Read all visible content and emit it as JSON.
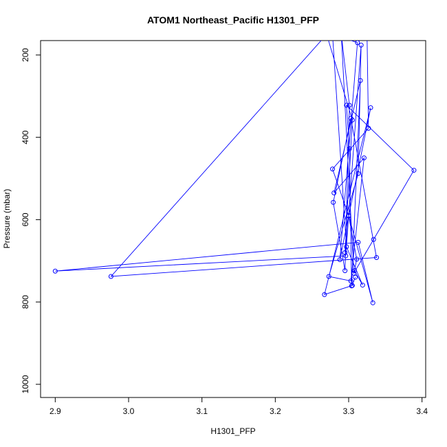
{
  "chart_data": {
    "type": "line",
    "title": "ATOM1 Northeast_Pacific H1301_PFP",
    "xlabel": "H1301_PFP",
    "ylabel": "Pressure (mbar)",
    "xlim": [
      2.88,
      3.405
    ],
    "ylim": [
      1032,
      165
    ],
    "y_inverted": true,
    "x_ticks": [
      "2.9",
      "3.0",
      "3.1",
      "3.2",
      "3.3",
      "3.4"
    ],
    "x_tick_values": [
      2.9,
      3.0,
      3.1,
      3.2,
      3.3,
      3.4
    ],
    "y_ticks": [
      "200",
      "400",
      "600",
      "800",
      "1000"
    ],
    "y_tick_values": [
      200,
      400,
      600,
      800,
      1000
    ],
    "grid": false,
    "legend": "none",
    "series": [
      {
        "color": "#0000ff",
        "marker": "open-circle",
        "points": [
          [
            3.325,
            150
          ],
          [
            3.327,
            378
          ],
          [
            3.278,
            477
          ],
          [
            3.3,
            590
          ],
          [
            3.333,
            802
          ],
          [
            3.313,
            655
          ],
          [
            2.9,
            725
          ],
          [
            3.296,
            688
          ],
          [
            3.317,
            176
          ],
          [
            3.313,
            488
          ],
          [
            3.273,
            738
          ],
          [
            3.303,
            749
          ],
          [
            3.321,
            450
          ],
          [
            3.28,
            535
          ],
          [
            3.316,
            262
          ],
          [
            3.304,
            761
          ],
          [
            3.301,
            428
          ],
          [
            3.297,
            322
          ],
          [
            3.389,
            480
          ],
          [
            3.334,
            648
          ],
          [
            3.307,
            730
          ],
          [
            3.29,
            150
          ],
          [
            3.301,
            322
          ],
          [
            3.295,
            724
          ],
          [
            3.279,
            558
          ],
          [
            3.303,
            354
          ],
          [
            3.338,
            692
          ],
          [
            2.976,
            738
          ],
          [
            3.27,
            150
          ],
          [
            3.305,
            358
          ],
          [
            3.295,
            680
          ],
          [
            3.3,
            591
          ],
          [
            3.311,
            696
          ],
          [
            3.308,
            724
          ],
          [
            3.319,
            759
          ],
          [
            3.297,
            666
          ],
          [
            3.278,
            150
          ],
          [
            3.312,
            170
          ],
          [
            3.288,
            697
          ],
          [
            3.33,
            328
          ],
          [
            3.267,
            782
          ],
          [
            3.305,
            760
          ],
          [
            3.309,
            740
          ]
        ]
      }
    ]
  }
}
